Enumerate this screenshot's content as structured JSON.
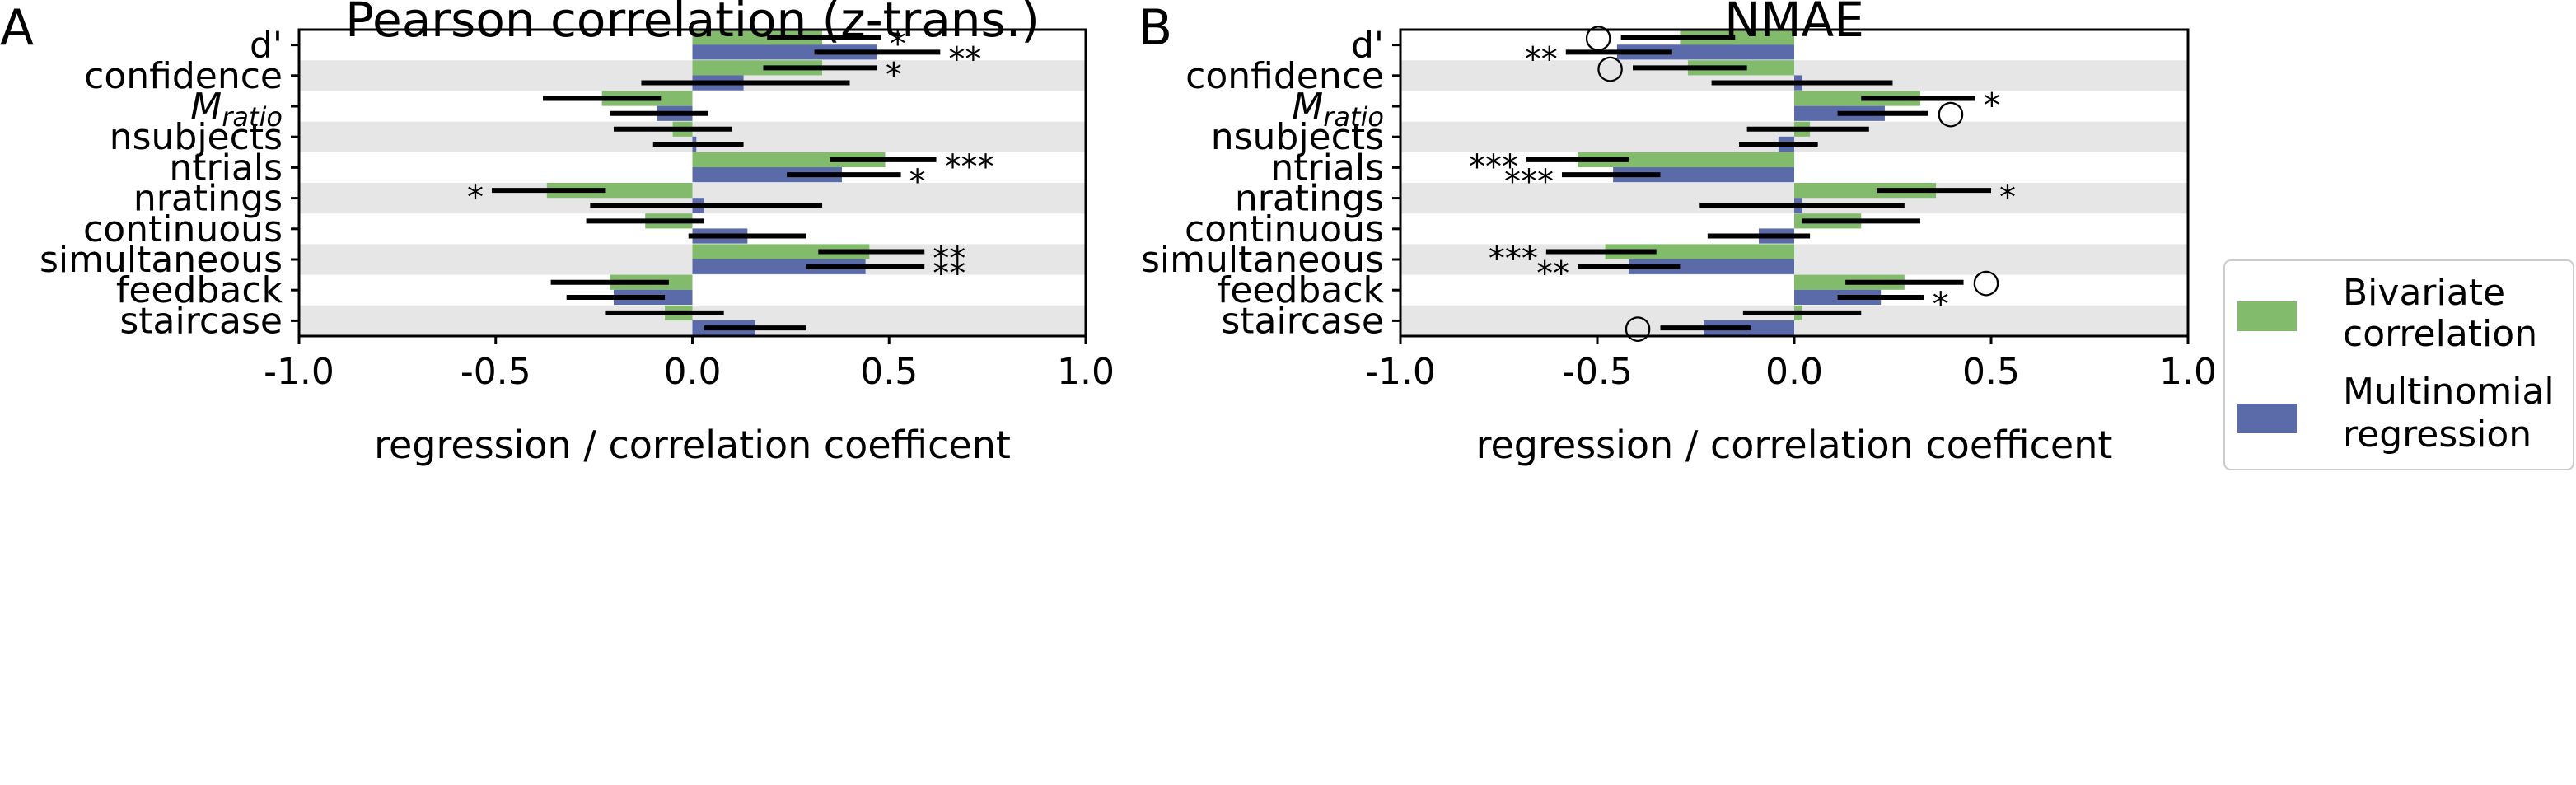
{
  "panel_letters": [
    "A",
    "B"
  ],
  "legend": {
    "items": [
      {
        "label_line1": "Bivariate",
        "label_line2": "correlation",
        "color": "#82bb6c"
      },
      {
        "label_line1": "Multinomial",
        "label_line2": "regression",
        "color": "#5b6aa8"
      }
    ]
  },
  "colors": {
    "bivariate": "#82bb6c",
    "multinomial": "#5b6aa8",
    "band": "#e6e6e6",
    "errorbar": "#000000"
  },
  "chart_data": [
    {
      "type": "bar",
      "orientation": "horizontal",
      "panel": "A",
      "title": "Pearson correlation (z-trans.)",
      "xlabel": "regression / correlation coefficent",
      "xlim": [
        -1.0,
        1.0
      ],
      "xticks": [
        "-1.0",
        "-0.5",
        "0.0",
        "0.5",
        "1.0"
      ],
      "categories": [
        "d'",
        "confidence",
        "M_ratio",
        "nsubjects",
        "ntrials",
        "nratings",
        "continuous",
        "simultaneous",
        "feedback",
        "staircase"
      ],
      "series": [
        {
          "name": "Bivariate correlation",
          "values": [
            0.33,
            0.33,
            -0.23,
            -0.05,
            0.49,
            -0.37,
            -0.12,
            0.45,
            -0.21,
            -0.07
          ],
          "ci": [
            [
              0.19,
              0.48
            ],
            [
              0.18,
              0.47
            ],
            [
              -0.38,
              -0.08
            ],
            [
              -0.2,
              0.1
            ],
            [
              0.35,
              0.62
            ],
            [
              -0.51,
              -0.22
            ],
            [
              -0.27,
              0.03
            ],
            [
              0.32,
              0.59
            ],
            [
              -0.36,
              -0.06
            ],
            [
              -0.22,
              0.08
            ]
          ],
          "annotations": [
            "*",
            "*",
            "",
            "",
            "***",
            "*",
            "",
            "**",
            "",
            ""
          ]
        },
        {
          "name": "Multinomial regression",
          "values": [
            0.47,
            0.13,
            -0.09,
            0.01,
            0.38,
            0.03,
            0.14,
            0.44,
            -0.2,
            0.16
          ],
          "ci": [
            [
              0.31,
              0.63
            ],
            [
              -0.13,
              0.4
            ],
            [
              -0.21,
              0.04
            ],
            [
              -0.1,
              0.13
            ],
            [
              0.24,
              0.53
            ],
            [
              -0.26,
              0.33
            ],
            [
              -0.01,
              0.29
            ],
            [
              0.29,
              0.59
            ],
            [
              -0.32,
              -0.07
            ],
            [
              0.03,
              0.29
            ]
          ],
          "annotations": [
            "**",
            "",
            "",
            "",
            "*",
            "",
            "",
            "**",
            "",
            ""
          ]
        }
      ]
    },
    {
      "type": "bar",
      "orientation": "horizontal",
      "panel": "B",
      "title": "NMAE",
      "xlabel": "regression / correlation coefficent",
      "xlim": [
        -1.0,
        1.0
      ],
      "xticks": [
        "-1.0",
        "-0.5",
        "0.0",
        "0.5",
        "1.0"
      ],
      "categories": [
        "d'",
        "confidence",
        "M_ratio",
        "nsubjects",
        "ntrials",
        "nratings",
        "continuous",
        "simultaneous",
        "feedback",
        "staircase"
      ],
      "series": [
        {
          "name": "Bivariate correlation",
          "values": [
            -0.29,
            -0.27,
            0.32,
            0.04,
            -0.55,
            0.36,
            0.17,
            -0.48,
            0.28,
            0.02
          ],
          "ci": [
            [
              -0.44,
              -0.15
            ],
            [
              -0.41,
              -0.12
            ],
            [
              0.17,
              0.46
            ],
            [
              -0.12,
              0.19
            ],
            [
              -0.68,
              -0.42
            ],
            [
              0.21,
              0.5
            ],
            [
              0.02,
              0.32
            ],
            [
              -0.63,
              -0.35
            ],
            [
              0.13,
              0.43
            ],
            [
              -0.13,
              0.17
            ]
          ],
          "annotations": [
            "○",
            "○",
            "*",
            "",
            "***",
            "*",
            "",
            "***",
            "○",
            ""
          ]
        },
        {
          "name": "Multinomial regression",
          "values": [
            -0.45,
            0.02,
            0.23,
            -0.04,
            -0.46,
            0.02,
            -0.09,
            -0.42,
            0.22,
            -0.23
          ],
          "ci": [
            [
              -0.58,
              -0.31
            ],
            [
              -0.21,
              0.25
            ],
            [
              0.11,
              0.34
            ],
            [
              -0.14,
              0.06
            ],
            [
              -0.59,
              -0.34
            ],
            [
              -0.24,
              0.28
            ],
            [
              -0.22,
              0.04
            ],
            [
              -0.55,
              -0.29
            ],
            [
              0.11,
              0.33
            ],
            [
              -0.34,
              -0.11
            ]
          ],
          "annotations": [
            "**",
            "",
            "○",
            "",
            "***",
            "",
            "",
            "**",
            "*",
            "○"
          ]
        }
      ]
    }
  ]
}
